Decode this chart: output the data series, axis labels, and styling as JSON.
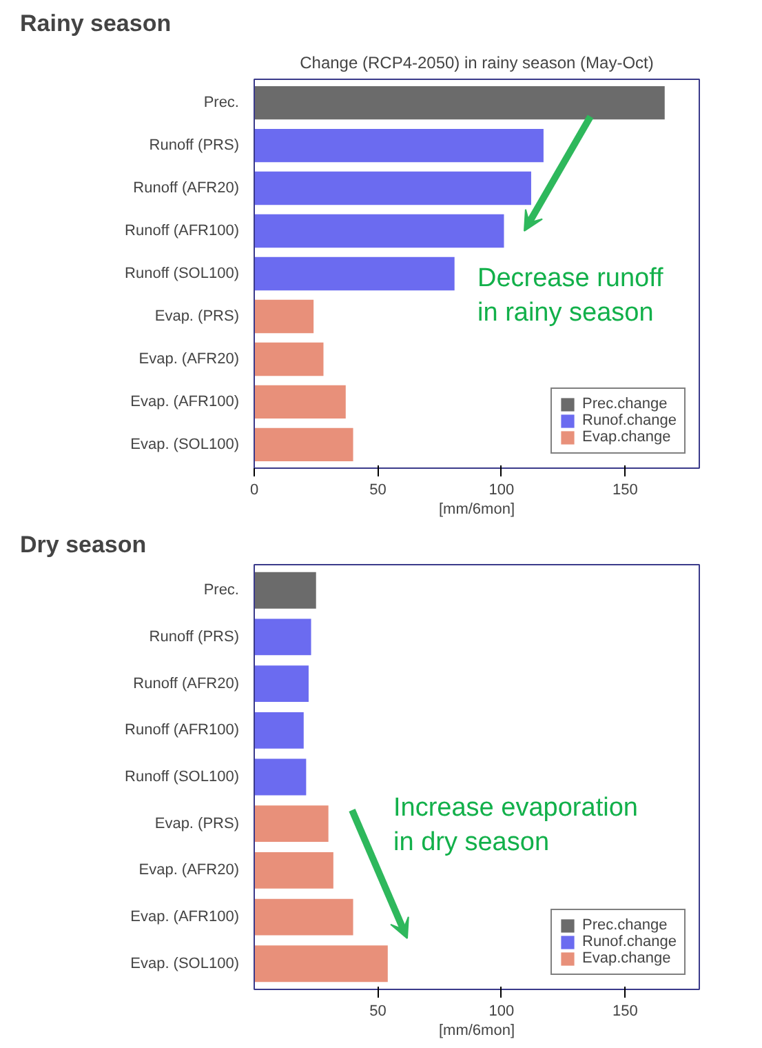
{
  "chart_data": [
    {
      "type": "bar",
      "orientation": "horizontal",
      "title": "Rainy season",
      "subtitle": "Change (RCP4-2050) in rainy season (May-Oct)",
      "xlabel": "[mm/6mon]",
      "categories": [
        "Prec.",
        "Runoff (PRS)",
        "Runoff (AFR20)",
        "Runoff (AFR100)",
        "Runoff (SOL100)",
        "Evap. (PRS)",
        "Evap. (AFR20)",
        "Evap. (AFR100)",
        "Evap. (SOL100)"
      ],
      "series": [
        {
          "name": "Prec.change",
          "color": "#6b6b6b",
          "values": [
            166,
            null,
            null,
            null,
            null,
            null,
            null,
            null,
            null
          ]
        },
        {
          "name": "Runof.change",
          "color": "#6b6bf0",
          "values": [
            null,
            117,
            112,
            101,
            81,
            null,
            null,
            null,
            null
          ]
        },
        {
          "name": "Evap.change",
          "color": "#e8907a",
          "values": [
            null,
            null,
            null,
            null,
            null,
            24,
            28,
            37,
            40
          ]
        }
      ],
      "xlim": [
        0,
        180
      ],
      "xticks": [
        0,
        50,
        100,
        150
      ],
      "legend": "bottom right",
      "grid": false,
      "annotations": [
        "Decrease runoff\nin rainy season"
      ]
    },
    {
      "type": "bar",
      "orientation": "horizontal",
      "title": "Dry season",
      "xlabel": "[mm/6mon]",
      "categories": [
        "Prec.",
        "Runoff (PRS)",
        "Runoff (AFR20)",
        "Runoff (AFR100)",
        "Runoff (SOL100)",
        "Evap. (PRS)",
        "Evap. (AFR20)",
        "Evap. (AFR100)",
        "Evap. (SOL100)"
      ],
      "series": [
        {
          "name": "Prec.change",
          "color": "#6b6b6b",
          "values": [
            25,
            null,
            null,
            null,
            null,
            null,
            null,
            null,
            null
          ]
        },
        {
          "name": "Runof.change",
          "color": "#6b6bf0",
          "values": [
            null,
            23,
            22,
            20,
            21,
            null,
            null,
            null,
            null
          ]
        },
        {
          "name": "Evap.change",
          "color": "#e8907a",
          "values": [
            null,
            null,
            null,
            null,
            null,
            30,
            32,
            40,
            54
          ]
        }
      ],
      "xlim": [
        0,
        180
      ],
      "xticks": [
        50,
        100,
        150
      ],
      "legend": "bottom right",
      "grid": false,
      "annotations": [
        "Increase evaporation\nin dry season"
      ]
    }
  ]
}
